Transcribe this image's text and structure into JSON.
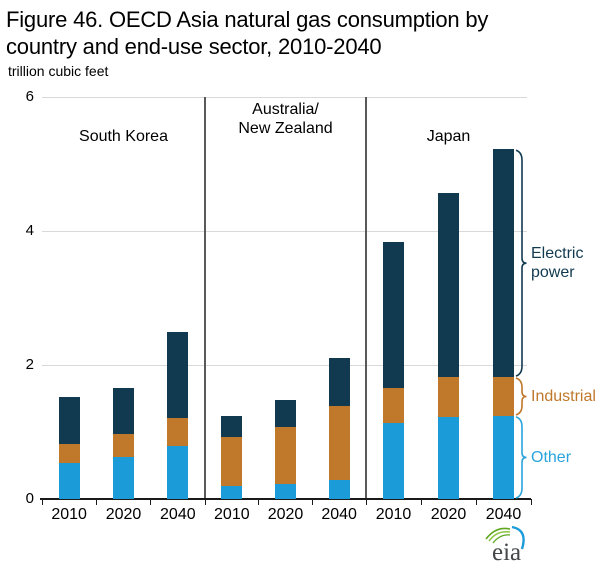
{
  "title_line1": "Figure 46. OECD Asia natural gas consumption by",
  "title_line2": "country and end-use sector, 2010-2040",
  "units_label": "trillion cubic feet",
  "logo_text": "eia",
  "colors": {
    "electric_power": "#113a50",
    "industrial": "#c0782b",
    "other": "#1b9cd8",
    "gridline": "#d9d9d9",
    "separator": "#595959",
    "axis": "#1a1a1a",
    "other_label_text": "#2aa4dc",
    "industrial_label_text": "#c0782b",
    "electric_label_text": "#113a50"
  },
  "chart_data": {
    "type": "bar",
    "stacked": true,
    "title": "Figure 46. OECD Asia natural gas consumption by country and end-use sector, 2010-2040",
    "ylabel": "trillion cubic feet",
    "xlabel": "",
    "ylim": [
      0,
      6
    ],
    "yticks": [
      0,
      2,
      4,
      6
    ],
    "grid": "horizontal",
    "legend_position": "right-braces",
    "series_order": [
      "Other",
      "Industrial",
      "Electric power"
    ],
    "series_colors": {
      "Other": "#1b9cd8",
      "Industrial": "#c0782b",
      "Electric power": "#113a50"
    },
    "categories": [
      "2010",
      "2020",
      "2040"
    ],
    "panels": [
      {
        "label_lines": [
          "South Korea"
        ],
        "categories": [
          "2010",
          "2020",
          "2040"
        ],
        "series": [
          {
            "name": "Other",
            "values": [
              0.53,
              0.63,
              0.79
            ]
          },
          {
            "name": "Industrial",
            "values": [
              0.29,
              0.34,
              0.42
            ]
          },
          {
            "name": "Electric power",
            "values": [
              0.7,
              0.68,
              1.29
            ]
          }
        ],
        "totals": [
          1.52,
          1.65,
          2.5
        ]
      },
      {
        "label_lines": [
          "Australia/",
          "New Zealand"
        ],
        "categories": [
          "2010",
          "2020",
          "2040"
        ],
        "series": [
          {
            "name": "Other",
            "values": [
              0.2,
              0.22,
              0.28
            ]
          },
          {
            "name": "Industrial",
            "values": [
              0.72,
              0.86,
              1.11
            ]
          },
          {
            "name": "Electric power",
            "values": [
              0.32,
              0.4,
              0.71
            ]
          }
        ],
        "totals": [
          1.24,
          1.48,
          2.1
        ]
      },
      {
        "label_lines": [
          "Japan"
        ],
        "categories": [
          "2010",
          "2020",
          "2040"
        ],
        "series": [
          {
            "name": "Other",
            "values": [
              1.13,
              1.22,
              1.24
            ]
          },
          {
            "name": "Industrial",
            "values": [
              0.52,
              0.6,
              0.58
            ]
          },
          {
            "name": "Electric power",
            "values": [
              2.19,
              2.75,
              3.4
            ]
          }
        ],
        "totals": [
          3.84,
          4.57,
          5.22
        ]
      }
    ],
    "legend": [
      {
        "name": "Electric power",
        "label_lines": [
          "Electric",
          "power"
        ],
        "color": "#113a50"
      },
      {
        "name": "Industrial",
        "label_lines": [
          "Industrial"
        ],
        "color": "#c0782b"
      },
      {
        "name": "Other",
        "label_lines": [
          "Other"
        ],
        "color": "#2aa4dc"
      }
    ]
  }
}
